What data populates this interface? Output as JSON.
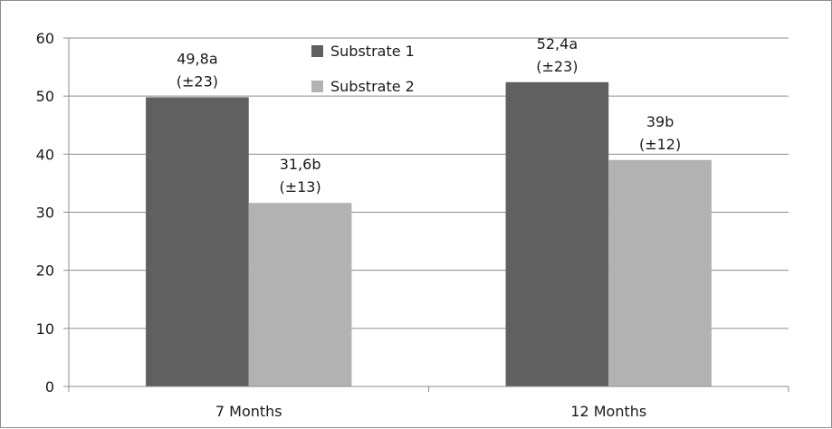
{
  "chart_data": {
    "type": "bar",
    "categories": [
      "7 Months",
      "12 Months"
    ],
    "series": [
      {
        "name": "Substrate 1",
        "color": "#606060",
        "values": [
          49.8,
          52.4
        ],
        "labels": [
          [
            "49,8a",
            "(±23)"
          ],
          [
            "52,4a",
            "(±23)"
          ]
        ]
      },
      {
        "name": "Substrate 2",
        "color": "#b2b2b2",
        "values": [
          31.6,
          39
        ],
        "labels": [
          [
            "31,6b",
            "(±13)"
          ],
          [
            "39b",
            "(±12)"
          ]
        ]
      }
    ],
    "title": "",
    "xlabel": "",
    "ylabel": "",
    "ylim": [
      0,
      60
    ],
    "yticks": [
      0,
      10,
      20,
      30,
      40,
      50,
      60
    ],
    "grid": true,
    "legend_position": "top-center"
  }
}
